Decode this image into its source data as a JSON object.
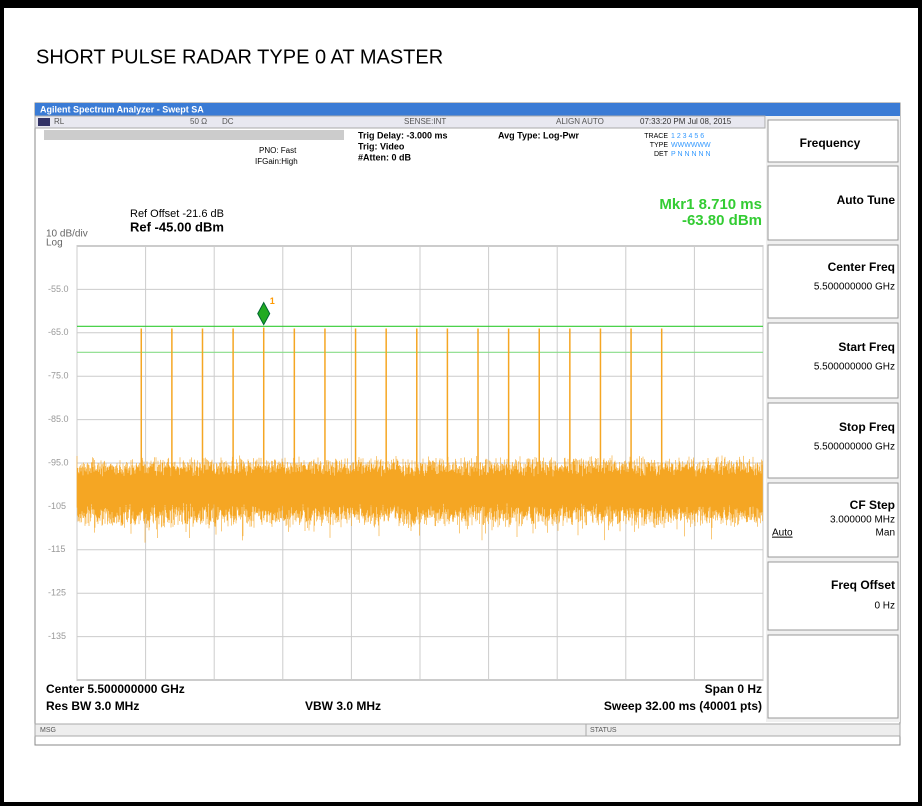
{
  "title": "SHORT PULSE RADAR TYPE 0 AT MASTER",
  "window_title": "Agilent Spectrum Analyzer - Swept SA",
  "status_bar": {
    "rl": "RL",
    "impedance": "50 Ω",
    "coupling": "DC",
    "sense": "SENSE:INT",
    "align": "ALIGN AUTO",
    "clock": "07:33:20 PM Jul 08, 2015"
  },
  "settings": {
    "trig_delay": "Trig Delay: -3.000 ms",
    "avg_type": "Avg Type: Log-Pwr",
    "trig": "Trig: Video",
    "atten": "#Atten: 0 dB",
    "pno": "PNO: Fast",
    "ifgain": "IFGain:High"
  },
  "trace_info": {
    "trace_label": "TRACE",
    "trace": "1 2 3 4 5 6",
    "type_label": "TYPE",
    "type": "WWWWWW",
    "det_label": "DET",
    "det": "P N N N N N"
  },
  "ref": {
    "offset": "Ref Offset -21.6 dB",
    "level": "Ref -45.00 dBm",
    "scale": "10 dB/div",
    "mode": "Log"
  },
  "marker_readout": {
    "time": "Mkr1 8.710 ms",
    "level": "-63.80 dBm"
  },
  "footer": {
    "center": "Center 5.500000000 GHz",
    "span": "Span 0 Hz",
    "rbw": "Res BW 3.0 MHz",
    "vbw": "VBW 3.0 MHz",
    "sweep": "Sweep  32.00 ms (40001 pts)"
  },
  "message_bar": {
    "msg": "MSG",
    "status": "STATUS"
  },
  "softkeys": {
    "menu": "Frequency",
    "auto_tune": "Auto Tune",
    "center_freq": {
      "label": "Center Freq",
      "value": "5.500000000 GHz"
    },
    "start_freq": {
      "label": "Start Freq",
      "value": "5.500000000 GHz"
    },
    "stop_freq": {
      "label": "Stop Freq",
      "value": "5.500000000 GHz"
    },
    "cf_step": {
      "label": "CF Step",
      "value": "3.000000 MHz",
      "auto": "Auto",
      "man": "Man"
    },
    "freq_offset": {
      "label": "Freq Offset",
      "value": "0 Hz"
    }
  },
  "chart_data": {
    "type": "pulse",
    "color": "#f5a623",
    "x": [
      2.998,
      4.426,
      5.854,
      7.282,
      8.71,
      10.138,
      11.566,
      12.994,
      14.422,
      15.85,
      17.278,
      18.706,
      20.134,
      21.562,
      22.99,
      24.418,
      25.846,
      27.274
    ],
    "values": [
      -64,
      -64,
      -64,
      -64,
      -63.8,
      -64,
      -64,
      -64,
      -64,
      -64,
      -64,
      -64,
      -64,
      -64,
      -64,
      -64,
      -64,
      -64
    ],
    "xlim": [
      0,
      32
    ],
    "ylim": [
      -145,
      -45
    ],
    "yticks": [
      {
        "value": -55,
        "label": "-55.0"
      },
      {
        "value": -65,
        "label": "-65.0"
      },
      {
        "value": -75,
        "label": "-75.0"
      },
      {
        "value": -85,
        "label": "-85.0"
      },
      {
        "value": -95,
        "label": "-95.0"
      },
      -105,
      -115,
      -125,
      -135
    ],
    "xgrid": [
      0,
      3.2,
      6.4,
      9.6,
      12.8,
      16,
      19.2,
      22.4,
      25.6,
      28.8,
      32
    ],
    "grid": true,
    "reference_lines": [
      {
        "value": -63.5,
        "color": "#33cc33"
      },
      {
        "value": -69.5,
        "color": "#88dd88"
      }
    ],
    "marker": {
      "label": "1",
      "x": 8.71,
      "y": -63.8,
      "color": "#22aa22"
    }
  }
}
